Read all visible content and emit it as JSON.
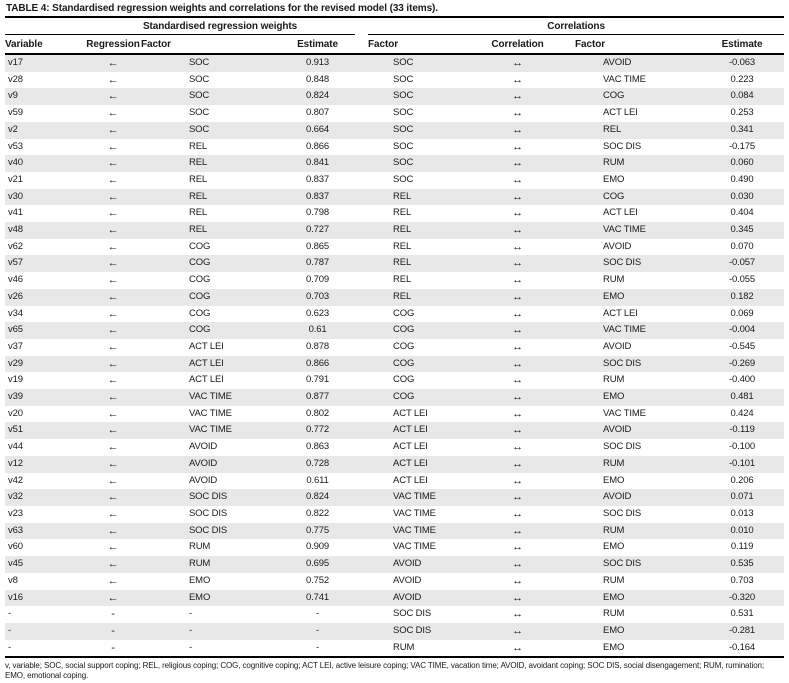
{
  "title": {
    "label": "TABLE 4:",
    "text": "Standardised regression weights and correlations for the revised model (33 items)."
  },
  "table": {
    "group_headers": {
      "left": "Standardised regression weights",
      "right": "Correlations"
    },
    "column_headers": {
      "left": [
        "Variable",
        "Regression",
        "Factor",
        "Estimate"
      ],
      "right": [
        "Factor",
        "Correlation",
        "Factor",
        "Estimate"
      ]
    },
    "symbols": {
      "regression": "←",
      "correlation": "↔",
      "empty": "-"
    },
    "rows": [
      [
        "v17",
        "←",
        "SOC",
        "0.913",
        "SOC",
        "↔",
        "AVOID",
        "-0.063"
      ],
      [
        "v28",
        "←",
        "SOC",
        "0.848",
        "SOC",
        "↔",
        "VAC TIME",
        "0.223"
      ],
      [
        "v9",
        "←",
        "SOC",
        "0.824",
        "SOC",
        "↔",
        "COG",
        "0.084"
      ],
      [
        "v59",
        "←",
        "SOC",
        "0.807",
        "SOC",
        "↔",
        "ACT LEI",
        "0.253"
      ],
      [
        "v2",
        "←",
        "SOC",
        "0.664",
        "SOC",
        "↔",
        "REL",
        "0.341"
      ],
      [
        "v53",
        "←",
        "REL",
        "0.866",
        "SOC",
        "↔",
        "SOC DIS",
        "-0.175"
      ],
      [
        "v40",
        "←",
        "REL",
        "0.841",
        "SOC",
        "↔",
        "RUM",
        "0.060"
      ],
      [
        "v21",
        "←",
        "REL",
        "0.837",
        "SOC",
        "↔",
        "EMO",
        "0.490"
      ],
      [
        "v30",
        "←",
        "REL",
        "0.837",
        "REL",
        "↔",
        "COG",
        "0.030"
      ],
      [
        "v41",
        "←",
        "REL",
        "0.798",
        "REL",
        "↔",
        "ACT LEI",
        "0.404"
      ],
      [
        "v48",
        "←",
        "REL",
        "0.727",
        "REL",
        "↔",
        "VAC TIME",
        "0.345"
      ],
      [
        "v62",
        "←",
        "COG",
        "0.865",
        "REL",
        "↔",
        "AVOID",
        "0.070"
      ],
      [
        "v57",
        "←",
        "COG",
        "0.787",
        "REL",
        "↔",
        "SOC DIS",
        "-0.057"
      ],
      [
        "v46",
        "←",
        "COG",
        "0.709",
        "REL",
        "↔",
        "RUM",
        "-0.055"
      ],
      [
        "v26",
        "←",
        "COG",
        "0.703",
        "REL",
        "↔",
        "EMO",
        "0.182"
      ],
      [
        "v34",
        "←",
        "COG",
        "0.623",
        "COG",
        "↔",
        "ACT LEI",
        "0.069"
      ],
      [
        "v65",
        "←",
        "COG",
        "0.61",
        "COG",
        "↔",
        "VAC TIME",
        "-0.004"
      ],
      [
        "v37",
        "←",
        "ACT LEI",
        "0.878",
        "COG",
        "↔",
        "AVOID",
        "-0.545"
      ],
      [
        "v29",
        "←",
        "ACT LEI",
        "0.866",
        "COG",
        "↔",
        "SOC DIS",
        "-0.269"
      ],
      [
        "v19",
        "←",
        "ACT LEI",
        "0.791",
        "COG",
        "↔",
        "RUM",
        "-0.400"
      ],
      [
        "v39",
        "←",
        "VAC TIME",
        "0.877",
        "COG",
        "↔",
        "EMO",
        "0.481"
      ],
      [
        "v20",
        "←",
        "VAC TIME",
        "0.802",
        "ACT LEI",
        "↔",
        "VAC TIME",
        "0.424"
      ],
      [
        "v51",
        "←",
        "VAC TIME",
        "0.772",
        "ACT LEI",
        "↔",
        "AVOID",
        "-0.119"
      ],
      [
        "v44",
        "←",
        "AVOID",
        "0.863",
        "ACT LEI",
        "↔",
        "SOC DIS",
        "-0.100"
      ],
      [
        "v12",
        "←",
        "AVOID",
        "0.728",
        "ACT LEI",
        "↔",
        "RUM",
        "-0.101"
      ],
      [
        "v42",
        "←",
        "AVOID",
        "0.611",
        "ACT LEI",
        "↔",
        "EMO",
        "0.206"
      ],
      [
        "v32",
        "←",
        "SOC DIS",
        "0.824",
        "VAC TIME",
        "↔",
        "AVOID",
        "0.071"
      ],
      [
        "v23",
        "←",
        "SOC DIS",
        "0.822",
        "VAC TIME",
        "↔",
        "SOC DIS",
        "0.013"
      ],
      [
        "v63",
        "←",
        "SOC DIS",
        "0.775",
        "VAC TIME",
        "↔",
        "RUM",
        "0.010"
      ],
      [
        "v60",
        "←",
        "RUM",
        "0.909",
        "VAC TIME",
        "↔",
        "EMO",
        "0.119"
      ],
      [
        "v45",
        "←",
        "RUM",
        "0.695",
        "AVOID",
        "↔",
        "SOC DIS",
        "0.535"
      ],
      [
        "v8",
        "←",
        "EMO",
        "0.752",
        "AVOID",
        "↔",
        "RUM",
        "0.703"
      ],
      [
        "v16",
        "←",
        "EMO",
        "0.741",
        "AVOID",
        "↔",
        "EMO",
        "-0.320"
      ],
      [
        "-",
        "-",
        "-",
        "-",
        "SOC DIS",
        "↔",
        "RUM",
        "0.531"
      ],
      [
        "-",
        "-",
        "-",
        "-",
        "SOC DIS",
        "↔",
        "EMO",
        "-0.281"
      ],
      [
        "-",
        "-",
        "-",
        "-",
        "RUM",
        "↔",
        "EMO",
        "-0.164"
      ]
    ]
  },
  "footnote": "v, variable; SOC, social support coping; REL, religious coping; COG, cognitive coping; ACT LEI, active leisure coping; VAC TIME, vacation time; AVOID, avoidant coping; SOC DIS, social disengagement; RUM, rumination; EMO, emotional coping.",
  "colors": {
    "stripe": "#e8e8e8",
    "rule": "#000000",
    "text": "#1a1a1a"
  }
}
